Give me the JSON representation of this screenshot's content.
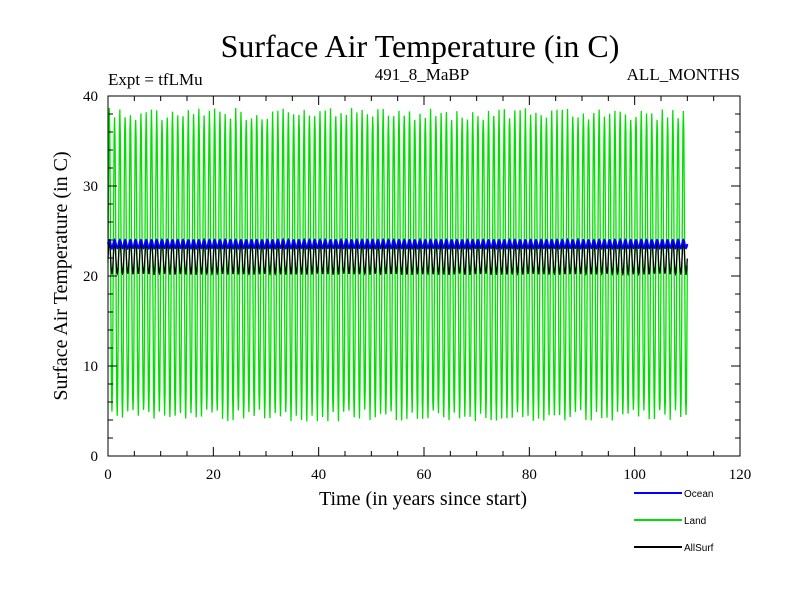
{
  "chart_data": {
    "type": "line",
    "title": "Surface Air Temperature (in C)",
    "subtitle_left": "Expt = tfLMu",
    "subtitle_center": "491_8_MaBP",
    "subtitle_right": "ALL_MONTHS",
    "xlabel": "Time (in years since start)",
    "ylabel": "Surface Air Temperature (in C)",
    "xlim": [
      0,
      120
    ],
    "ylim": [
      0,
      40
    ],
    "xticks": [
      0,
      20,
      40,
      60,
      80,
      100,
      120
    ],
    "yticks": [
      0,
      10,
      20,
      30,
      40
    ],
    "x_end": 110,
    "grid": false,
    "legend_position": "bottom-right, below plot",
    "series": [
      {
        "name": "Land",
        "color": "#00e000",
        "pattern": "annual-cycle",
        "min": 4.5,
        "max": 38.0,
        "mean": 21.2
      },
      {
        "name": "AllSurf",
        "color": "#000000",
        "pattern": "annual-cycle",
        "min": 20.2,
        "max": 23.8,
        "mean": 22.0
      },
      {
        "name": "Ocean",
        "color": "#0000ff",
        "pattern": "annual-cycle",
        "min": 23.1,
        "max": 24.0,
        "mean": 23.5
      }
    ],
    "legend": [
      {
        "name": "Ocean",
        "color": "#0000ff"
      },
      {
        "name": "Land",
        "color": "#00e000"
      },
      {
        "name": "AllSurf",
        "color": "#000000"
      }
    ]
  }
}
